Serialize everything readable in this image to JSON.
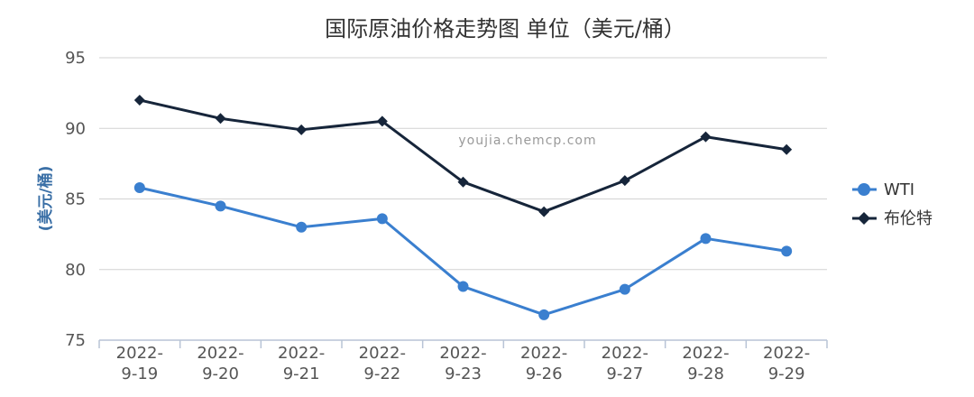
{
  "chart_data": {
    "type": "line",
    "title": "国际原油价格走势图 单位（美元/桶）",
    "xlabel": "",
    "ylabel": "(美元/桶)",
    "categories": [
      [
        "2022-",
        "9-19"
      ],
      [
        "2022-",
        "9-20"
      ],
      [
        "2022-",
        "9-21"
      ],
      [
        "2022-",
        "9-22"
      ],
      [
        "2022-",
        "9-23"
      ],
      [
        "2022-",
        "9-26"
      ],
      [
        "2022-",
        "9-27"
      ],
      [
        "2022-",
        "9-28"
      ],
      [
        "2022-",
        "9-29"
      ]
    ],
    "ylim": [
      75,
      95
    ],
    "yticks": [
      95,
      90,
      85,
      80,
      75
    ],
    "grid": true,
    "legend_position": "right",
    "series": [
      {
        "name": "WTI",
        "color": "#3a7fcf",
        "marker": "circle",
        "values": [
          85.8,
          84.5,
          83.0,
          83.6,
          78.8,
          76.8,
          78.6,
          82.2,
          81.3
        ]
      },
      {
        "name": "布伦特",
        "color": "#16253a",
        "marker": "diamond",
        "values": [
          92.0,
          90.7,
          89.9,
          90.5,
          86.2,
          84.1,
          86.3,
          89.4,
          88.5
        ]
      }
    ]
  },
  "watermark": "youjia.chemcp.com"
}
